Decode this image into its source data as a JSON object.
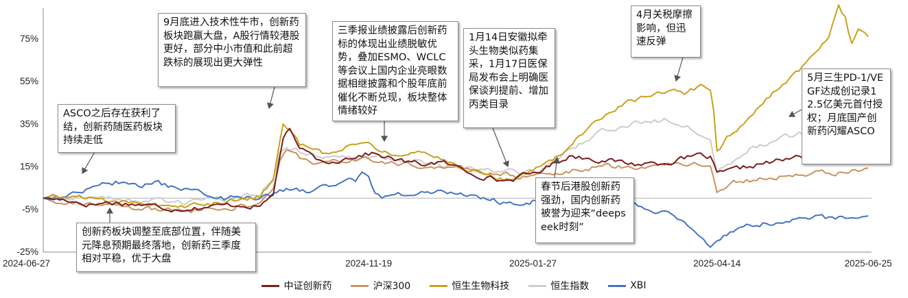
{
  "chart_data": {
    "type": "line",
    "title": "",
    "xlabel": "",
    "ylabel": "",
    "x_ticks": [
      "2024-06-27",
      "2024-11-19",
      "2025-01-27",
      "2025-04-14",
      "2025-06-25"
    ],
    "x_tick_index": [
      0,
      99,
      149,
      205,
      251
    ],
    "y_ticks": [
      "75%",
      "55%",
      "35%",
      "15%",
      "-5%",
      "-25%"
    ],
    "y_tick_values": [
      75,
      55,
      35,
      15,
      -5,
      -25
    ],
    "ylim": [
      -25,
      95
    ],
    "n_points": 252,
    "series": [
      {
        "name": "中证创新药",
        "color": "#7b1b1b",
        "anchors": [
          [
            0,
            0
          ],
          [
            8,
            -1
          ],
          [
            14,
            -3
          ],
          [
            20,
            -2
          ],
          [
            30,
            -3
          ],
          [
            40,
            -5
          ],
          [
            50,
            -4
          ],
          [
            60,
            -3
          ],
          [
            66,
            -4
          ],
          [
            70,
            2
          ],
          [
            72,
            20
          ],
          [
            73,
            28
          ],
          [
            75,
            32
          ],
          [
            77,
            25
          ],
          [
            80,
            21
          ],
          [
            85,
            17
          ],
          [
            90,
            18
          ],
          [
            95,
            20
          ],
          [
            100,
            21
          ],
          [
            105,
            19
          ],
          [
            110,
            17
          ],
          [
            115,
            16
          ],
          [
            120,
            17
          ],
          [
            125,
            15
          ],
          [
            130,
            12
          ],
          [
            135,
            10
          ],
          [
            140,
            8
          ],
          [
            145,
            10
          ],
          [
            150,
            12
          ],
          [
            155,
            16
          ],
          [
            160,
            20
          ],
          [
            170,
            18
          ],
          [
            180,
            16
          ],
          [
            190,
            17
          ],
          [
            200,
            20
          ],
          [
            203,
            19
          ],
          [
            205,
            11
          ],
          [
            210,
            13
          ],
          [
            218,
            16
          ],
          [
            226,
            18
          ],
          [
            232,
            20
          ],
          [
            238,
            22
          ],
          [
            243,
            24
          ],
          [
            247,
            26
          ],
          [
            251,
            27
          ]
        ]
      },
      {
        "name": "沪深300",
        "color": "#c8935e",
        "anchors": [
          [
            0,
            0
          ],
          [
            10,
            -2
          ],
          [
            20,
            -4
          ],
          [
            30,
            -5
          ],
          [
            40,
            -6
          ],
          [
            50,
            -5
          ],
          [
            60,
            -4
          ],
          [
            66,
            -3
          ],
          [
            70,
            4
          ],
          [
            72,
            18
          ],
          [
            74,
            22
          ],
          [
            78,
            19
          ],
          [
            85,
            16
          ],
          [
            95,
            18
          ],
          [
            105,
            17
          ],
          [
            115,
            15
          ],
          [
            125,
            14
          ],
          [
            135,
            12
          ],
          [
            145,
            10
          ],
          [
            150,
            11
          ],
          [
            160,
            13
          ],
          [
            170,
            15
          ],
          [
            180,
            15
          ],
          [
            190,
            16
          ],
          [
            200,
            16
          ],
          [
            203,
            15
          ],
          [
            205,
            3
          ],
          [
            210,
            8
          ],
          [
            218,
            9
          ],
          [
            225,
            10
          ],
          [
            235,
            12
          ],
          [
            245,
            12
          ],
          [
            251,
            14
          ]
        ]
      },
      {
        "name": "恒生生物科技",
        "color": "#c9a018",
        "anchors": [
          [
            0,
            0
          ],
          [
            10,
            1
          ],
          [
            20,
            -1
          ],
          [
            30,
            -2
          ],
          [
            40,
            -4
          ],
          [
            50,
            -3
          ],
          [
            60,
            -1
          ],
          [
            66,
            1
          ],
          [
            70,
            10
          ],
          [
            72,
            27
          ],
          [
            73,
            34
          ],
          [
            75,
            31
          ],
          [
            78,
            25
          ],
          [
            85,
            21
          ],
          [
            90,
            23
          ],
          [
            95,
            26
          ],
          [
            100,
            24
          ],
          [
            105,
            22
          ],
          [
            110,
            20
          ],
          [
            115,
            21
          ],
          [
            120,
            19
          ],
          [
            125,
            16
          ],
          [
            130,
            13
          ],
          [
            135,
            11
          ],
          [
            140,
            9
          ],
          [
            145,
            11
          ],
          [
            150,
            14
          ],
          [
            155,
            18
          ],
          [
            160,
            25
          ],
          [
            165,
            32
          ],
          [
            170,
            38
          ],
          [
            175,
            43
          ],
          [
            180,
            46
          ],
          [
            185,
            48
          ],
          [
            190,
            51
          ],
          [
            195,
            49
          ],
          [
            200,
            53
          ],
          [
            203,
            52
          ],
          [
            204,
            42
          ],
          [
            205,
            22
          ],
          [
            208,
            28
          ],
          [
            212,
            33
          ],
          [
            216,
            40
          ],
          [
            220,
            47
          ],
          [
            225,
            53
          ],
          [
            230,
            60
          ],
          [
            235,
            68
          ],
          [
            239,
            75
          ],
          [
            242,
            89
          ],
          [
            244,
            84
          ],
          [
            246,
            72
          ],
          [
            248,
            80
          ],
          [
            250,
            79
          ],
          [
            251,
            77
          ]
        ]
      },
      {
        "name": "恒生指数",
        "color": "#cccccc",
        "anchors": [
          [
            0,
            0
          ],
          [
            10,
            1
          ],
          [
            20,
            0
          ],
          [
            30,
            -1
          ],
          [
            40,
            -2
          ],
          [
            50,
            -1
          ],
          [
            60,
            0
          ],
          [
            66,
            2
          ],
          [
            70,
            10
          ],
          [
            72,
            22
          ],
          [
            74,
            25
          ],
          [
            78,
            22
          ],
          [
            85,
            18
          ],
          [
            95,
            19
          ],
          [
            105,
            18
          ],
          [
            115,
            17
          ],
          [
            125,
            15
          ],
          [
            135,
            13
          ],
          [
            145,
            12
          ],
          [
            150,
            13
          ],
          [
            155,
            17
          ],
          [
            160,
            22
          ],
          [
            165,
            27
          ],
          [
            170,
            31
          ],
          [
            175,
            33
          ],
          [
            180,
            35
          ],
          [
            185,
            36
          ],
          [
            190,
            37
          ],
          [
            195,
            35
          ],
          [
            200,
            31
          ],
          [
            203,
            27
          ],
          [
            205,
            13
          ],
          [
            210,
            18
          ],
          [
            215,
            23
          ],
          [
            220,
            26
          ],
          [
            225,
            28
          ],
          [
            230,
            30
          ],
          [
            235,
            31
          ],
          [
            240,
            33
          ],
          [
            245,
            34
          ],
          [
            251,
            32
          ]
        ]
      },
      {
        "name": "XBI",
        "color": "#4472c4",
        "anchors": [
          [
            0,
            0
          ],
          [
            5,
            0
          ],
          [
            10,
            3
          ],
          [
            15,
            5
          ],
          [
            20,
            7
          ],
          [
            25,
            8
          ],
          [
            30,
            6
          ],
          [
            35,
            7
          ],
          [
            40,
            5
          ],
          [
            45,
            3
          ],
          [
            50,
            2
          ],
          [
            55,
            0
          ],
          [
            60,
            1
          ],
          [
            65,
            0
          ],
          [
            70,
            2
          ],
          [
            75,
            4
          ],
          [
            80,
            3
          ],
          [
            85,
            5
          ],
          [
            90,
            7
          ],
          [
            95,
            8
          ],
          [
            97,
            12
          ],
          [
            99,
            9
          ],
          [
            101,
            2
          ],
          [
            103,
            0
          ],
          [
            105,
            1
          ],
          [
            110,
            2
          ],
          [
            115,
            3
          ],
          [
            120,
            3
          ],
          [
            125,
            2
          ],
          [
            130,
            1
          ],
          [
            135,
            0
          ],
          [
            140,
            -2
          ],
          [
            145,
            -3
          ],
          [
            150,
            -1
          ],
          [
            155,
            0
          ],
          [
            160,
            2
          ],
          [
            165,
            1
          ],
          [
            170,
            -2
          ],
          [
            175,
            -4
          ],
          [
            180,
            -3
          ],
          [
            185,
            -5
          ],
          [
            190,
            -7
          ],
          [
            195,
            -10
          ],
          [
            198,
            -14
          ],
          [
            200,
            -18
          ],
          [
            203,
            -22
          ],
          [
            205,
            -21
          ],
          [
            208,
            -17
          ],
          [
            212,
            -14
          ],
          [
            216,
            -13
          ],
          [
            220,
            -12
          ],
          [
            225,
            -11
          ],
          [
            230,
            -10
          ],
          [
            235,
            -9
          ],
          [
            240,
            -10
          ],
          [
            245,
            -9
          ],
          [
            251,
            -10
          ]
        ]
      }
    ],
    "annotations": [
      "9月底进入技术性牛市，创新药板块跑赢大盘，A股行情较港股更好，部分中小市值和此前超跌标的展现出更大弹性",
      "三季报业绩披露后创新药标的体现出业绩脱敏优势，叠加ESMO、WCLC等会议上国内企业亮眼数据相继披露和个股年底前催化不断兑现，板块整体情绪较好",
      "1月14日安徽拟牵头生物类似药集采，1月17日医保局发布会上明确医保谈判提前、增加丙类目录",
      "4月关税摩擦影响，但迅速反弹",
      "ASCO之后存在获利了结，创新药随医药板块持续走低",
      "5月三生PD-1/VEGF达成创记录12.5亿美元首付授权；月底国产创新药闪耀ASCO",
      "春节后港股创新药强劲，国内创新药被誉为迎来“deepseek时刻”",
      "创新药板块调整至底部位置，伴随美元降息预期最终落地，创新药三季度相对平稳，优于大盘"
    ],
    "legend": [
      "中证创新药",
      "沪深300",
      "恒生生物科技",
      "恒生指数",
      "XBI"
    ]
  }
}
